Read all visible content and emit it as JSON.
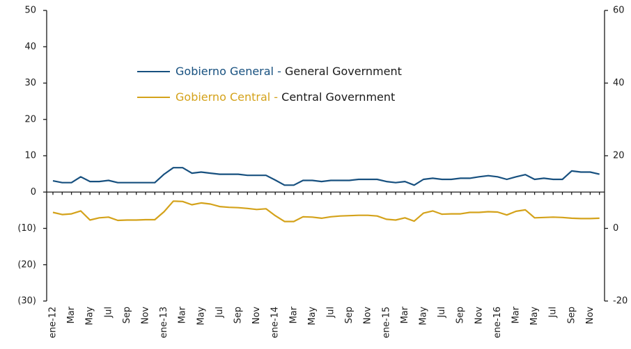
{
  "chart_data": {
    "type": "line",
    "categories": [
      "ene-12",
      null,
      "Mar",
      null,
      "May",
      null,
      "Jul",
      null,
      "Sep",
      null,
      "Nov",
      null,
      "ene-13",
      null,
      "Mar",
      null,
      "May",
      null,
      "Jul",
      null,
      "Sep",
      null,
      "Nov",
      null,
      "ene-14",
      null,
      "Mar",
      null,
      "May",
      null,
      "Jul",
      null,
      "Sep",
      null,
      "Nov",
      null,
      "ene-15",
      null,
      "Mar",
      null,
      "May",
      null,
      "Jul",
      null,
      "Sep",
      null,
      "Nov",
      null,
      "ene-16",
      null,
      "Mar",
      null,
      "May",
      null,
      "Jul",
      null,
      "Sep",
      null,
      "Nov",
      null
    ],
    "series": [
      {
        "name": "Gobierno General - General Government",
        "color": "#17507f",
        "axis": "y",
        "values": [
          3.1,
          2.6,
          2.6,
          4.2,
          2.9,
          2.9,
          3.2,
          2.6,
          2.6,
          2.6,
          2.6,
          2.6,
          4.9,
          6.7,
          6.7,
          5.2,
          5.5,
          5.2,
          4.9,
          4.9,
          4.9,
          4.6,
          4.6,
          4.6,
          3.3,
          1.9,
          1.9,
          3.2,
          3.2,
          2.9,
          3.2,
          3.2,
          3.2,
          3.5,
          3.5,
          3.5,
          2.9,
          2.6,
          2.9,
          1.9,
          3.5,
          3.8,
          3.5,
          3.5,
          3.8,
          3.8,
          4.2,
          4.5,
          4.2,
          3.5,
          4.2,
          4.8,
          3.5,
          3.8,
          3.5,
          3.5,
          5.8,
          5.5,
          5.5,
          4.9
        ]
      },
      {
        "name": "Gobierno Central - Central Government",
        "color": "#d4a21a",
        "axis": "y2",
        "values": [
          4.4,
          3.8,
          4.0,
          4.8,
          2.3,
          2.9,
          3.1,
          2.2,
          2.3,
          2.3,
          2.4,
          2.4,
          4.6,
          7.5,
          7.4,
          6.5,
          7.0,
          6.7,
          6.0,
          5.8,
          5.7,
          5.5,
          5.2,
          5.4,
          3.5,
          1.9,
          1.9,
          3.2,
          3.1,
          2.8,
          3.2,
          3.4,
          3.5,
          3.6,
          3.6,
          3.4,
          2.5,
          2.3,
          2.9,
          2.0,
          4.2,
          4.8,
          3.9,
          4.0,
          4.0,
          4.4,
          4.4,
          4.6,
          4.5,
          3.7,
          4.7,
          5.1,
          2.9,
          3.0,
          3.1,
          3.0,
          2.8,
          2.7,
          2.7,
          2.8
        ]
      }
    ],
    "ylim": [
      -30,
      50
    ],
    "yticks": [
      50,
      40,
      30,
      20,
      10,
      0,
      {
        "value": -10,
        "label": "(10)"
      },
      {
        "value": -20,
        "label": "(20)"
      },
      {
        "value": -30,
        "label": "(30)"
      }
    ],
    "y2lim": [
      -20,
      60
    ],
    "y2ticks": [
      60,
      40,
      20,
      0,
      -20
    ]
  }
}
